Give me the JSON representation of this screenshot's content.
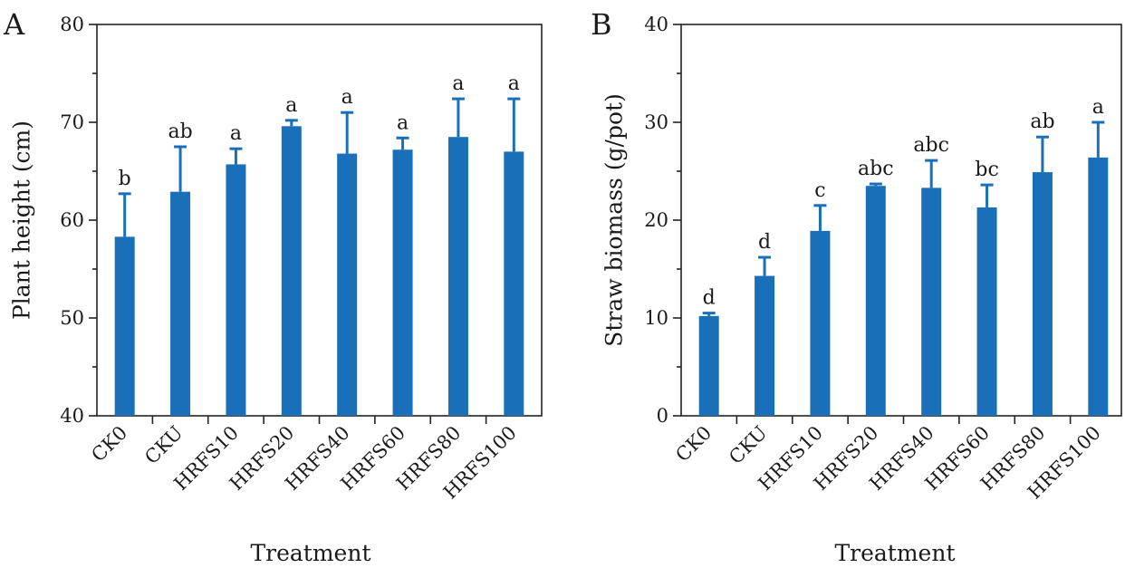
{
  "chart_data": [
    {
      "type": "bar",
      "panel_label": "A",
      "title": "",
      "xlabel": "Treatment",
      "ylabel": "Plant height (cm)",
      "ylim": [
        40,
        80
      ],
      "yticks": [
        40,
        50,
        60,
        70,
        80
      ],
      "grid": false,
      "categories": [
        "CK0",
        "CKU",
        "HRFS10",
        "HRFS20",
        "HRFS40",
        "HRFS60",
        "HRFS80",
        "HRFS100"
      ],
      "values": [
        58.3,
        62.9,
        65.7,
        69.6,
        66.8,
        67.2,
        68.5,
        67.0
      ],
      "errors": [
        4.4,
        4.6,
        1.6,
        0.6,
        4.2,
        1.2,
        3.9,
        5.4
      ],
      "significance": [
        "b",
        "ab",
        "a",
        "a",
        "a",
        "a",
        "a",
        "a"
      ],
      "colors": {
        "bar": "#1a6fb9"
      }
    },
    {
      "type": "bar",
      "panel_label": "B",
      "title": "",
      "xlabel": "Treatment",
      "ylabel": "Straw biomass (g/pot)",
      "ylim": [
        0,
        40
      ],
      "yticks": [
        0,
        10,
        20,
        30,
        40
      ],
      "grid": false,
      "categories": [
        "CK0",
        "CKU",
        "HRFS10",
        "HRFS20",
        "HRFS40",
        "HRFS60",
        "HRFS80",
        "HRFS100"
      ],
      "values": [
        10.2,
        14.3,
        18.9,
        23.5,
        23.3,
        21.3,
        24.9,
        26.4
      ],
      "errors": [
        0.3,
        1.9,
        2.6,
        0.2,
        2.8,
        2.3,
        3.6,
        3.6
      ],
      "significance": [
        "d",
        "d",
        "c",
        "abc",
        "abc",
        "bc",
        "ab",
        "a"
      ],
      "colors": {
        "bar": "#1a6fb9"
      }
    }
  ]
}
